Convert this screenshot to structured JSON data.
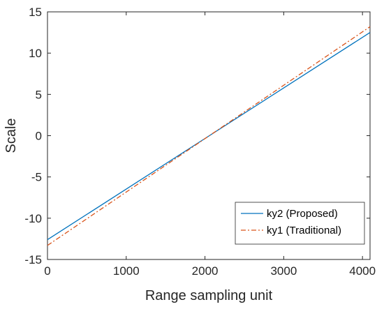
{
  "chart_data": {
    "type": "line",
    "xlabel": "Range sampling unit",
    "ylabel": "Scale",
    "xlim": [
      0,
      4096
    ],
    "ylim": [
      -15,
      15
    ],
    "xticks": [
      "0",
      "1000",
      "2000",
      "3000",
      "4000"
    ],
    "yticks": [
      "-15",
      "-10",
      "-5",
      "0",
      "5",
      "10",
      "15"
    ],
    "grid": false,
    "legend_position": "bottom-right",
    "series": [
      {
        "name": "ky2 (Proposed)",
        "color": "#0072BD",
        "style": "solid",
        "x": [
          0,
          4096
        ],
        "y": [
          -12.6,
          12.5
        ]
      },
      {
        "name": "ky1 (Traditional)",
        "color": "#D95319",
        "style": "dash-dot",
        "x": [
          0,
          4096
        ],
        "y": [
          -13.3,
          13.2
        ]
      }
    ]
  }
}
